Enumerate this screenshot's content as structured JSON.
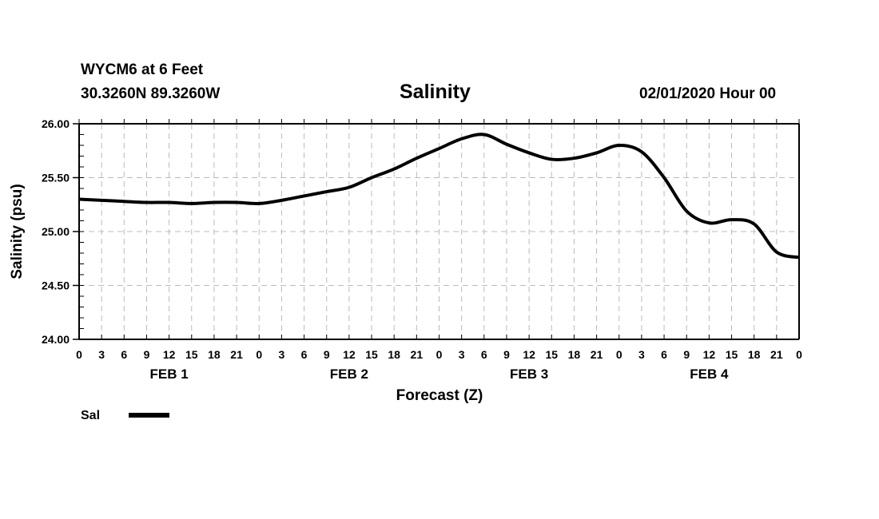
{
  "header": {
    "station": "WYCM6 at 6 Feet",
    "coords": "30.3260N 89.3260W",
    "title": "Salinity",
    "datetime": "02/01/2020 Hour 00"
  },
  "chart_data": {
    "type": "line",
    "title": "Salinity",
    "xlabel": "Forecast (Z)",
    "ylabel": "Salinity (psu)",
    "ylim": [
      24.0,
      26.0
    ],
    "xlim": [
      0,
      96
    ],
    "yticks": [
      "26.00",
      "25.50",
      "25.00",
      "24.50",
      "24.00"
    ],
    "ytick_values": [
      26.0,
      25.5,
      25.0,
      24.5,
      24.0
    ],
    "xtick_labels": [
      "0",
      "3",
      "6",
      "9",
      "12",
      "15",
      "18",
      "21",
      "0",
      "3",
      "6",
      "9",
      "12",
      "15",
      "18",
      "21",
      "0",
      "3",
      "6",
      "9",
      "12",
      "15",
      "18",
      "21",
      "0",
      "3",
      "6",
      "9",
      "12",
      "15",
      "18",
      "21",
      "0"
    ],
    "day_labels": [
      {
        "label": "FEB 1",
        "hour": 12
      },
      {
        "label": "FEB 2",
        "hour": 36
      },
      {
        "label": "FEB 3",
        "hour": 60
      },
      {
        "label": "FEB 4",
        "hour": 84
      }
    ],
    "grid": true,
    "legend": {
      "placement": "bottom-left",
      "entries": [
        "Sal"
      ]
    },
    "series": [
      {
        "name": "Sal",
        "color": "#000000",
        "x": [
          0,
          3,
          6,
          9,
          12,
          15,
          18,
          21,
          24,
          27,
          30,
          33,
          36,
          39,
          42,
          45,
          48,
          51,
          54,
          57,
          60,
          63,
          66,
          69,
          72,
          75,
          78,
          81,
          84,
          87,
          90,
          93,
          96
        ],
        "values": [
          25.3,
          25.29,
          25.28,
          25.27,
          25.27,
          25.26,
          25.27,
          25.27,
          25.26,
          25.29,
          25.33,
          25.37,
          25.41,
          25.5,
          25.58,
          25.68,
          25.77,
          25.86,
          25.9,
          25.81,
          25.73,
          25.67,
          25.68,
          25.73,
          25.8,
          25.74,
          25.5,
          25.19,
          25.08,
          25.11,
          25.07,
          24.81,
          24.76
        ]
      }
    ]
  }
}
